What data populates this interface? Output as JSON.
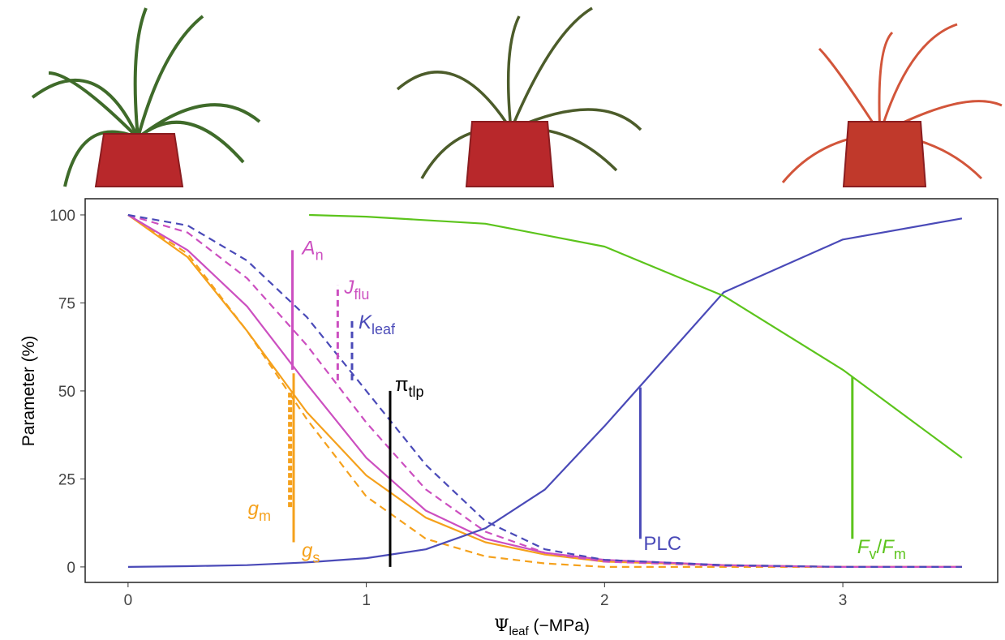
{
  "chart_data": {
    "type": "line",
    "x_label": {
      "symbol": "Ψ",
      "sub": "leaf",
      "unit": " (−MPa)"
    },
    "y_label": "Parameter (%)",
    "xlim": [
      -0.18,
      3.65
    ],
    "ylim": [
      -4.4,
      104.6
    ],
    "xticks": [
      0,
      1,
      2,
      3
    ],
    "yticks": [
      0,
      25,
      50,
      75,
      100
    ],
    "series": [
      {
        "name": "gs",
        "color": "#f5a11c",
        "dash": false,
        "x": [
          0,
          0.25,
          0.5,
          0.75,
          1,
          1.25,
          1.5,
          1.75,
          2,
          2.5,
          3,
          3.5
        ],
        "values": [
          100,
          88,
          67,
          44,
          26,
          14,
          7,
          3.5,
          1.5,
          0.5,
          0,
          0
        ]
      },
      {
        "name": "gm",
        "color": "#f5a11c",
        "dash": true,
        "x": [
          0,
          0.25,
          0.5,
          0.75,
          1,
          1.25,
          1.5,
          1.75,
          2,
          2.5,
          3,
          3.5
        ],
        "values": [
          100,
          89,
          67,
          42,
          20,
          8,
          3,
          1,
          0,
          0,
          0,
          0
        ]
      },
      {
        "name": "An",
        "color": "#cc4fc0",
        "dash": false,
        "x": [
          0,
          0.25,
          0.5,
          0.75,
          1,
          1.25,
          1.5,
          1.75,
          2,
          2.5,
          3,
          3.5
        ],
        "values": [
          100,
          90,
          74,
          52,
          31,
          16,
          8,
          4,
          2,
          0.5,
          0,
          0
        ]
      },
      {
        "name": "Jflu",
        "color": "#cc4fc0",
        "dash": true,
        "x": [
          0,
          0.25,
          0.5,
          0.75,
          1,
          1.25,
          1.5,
          1.75,
          2,
          2.5,
          3,
          3.5
        ],
        "values": [
          100,
          95,
          82,
          63,
          41,
          22,
          10,
          4,
          1.5,
          0.3,
          0,
          0
        ]
      },
      {
        "name": "Kleaf",
        "color": "#4a4ab8",
        "dash": true,
        "x": [
          0,
          0.25,
          0.5,
          0.75,
          1,
          1.25,
          1.5,
          1.75,
          2,
          2.5,
          3,
          3.5
        ],
        "values": [
          100,
          97,
          87,
          71,
          50,
          29,
          13,
          5,
          2,
          0.5,
          0,
          0
        ]
      },
      {
        "name": "PLC",
        "color": "#4a4ab8",
        "dash": false,
        "x": [
          0,
          0.25,
          0.5,
          0.75,
          1,
          1.25,
          1.5,
          1.75,
          2,
          2.5,
          3,
          3.5
        ],
        "values": [
          0,
          0.2,
          0.5,
          1.3,
          2.5,
          5,
          11,
          22,
          40,
          78,
          93,
          99
        ]
      },
      {
        "name": "FvFm",
        "color": "#5cc41c",
        "dash": false,
        "x": [
          0.76,
          1,
          1.5,
          2,
          2.5,
          3,
          3.5
        ],
        "values": [
          100,
          99.5,
          97.5,
          91,
          77,
          56,
          31
        ]
      }
    ],
    "markers": [
      {
        "x": 0.69,
        "y": [
          56,
          90
        ],
        "color": "#cc4fc0",
        "dash": false,
        "label": [
          {
            "text": "A",
            "sub": false,
            "italic": true
          },
          {
            "text": "n",
            "sub": true,
            "italic": false
          }
        ]
      },
      {
        "x": 0.88,
        "y": [
          53,
          80
        ],
        "color": "#cc4fc0",
        "dash": true,
        "label": [
          {
            "text": "J",
            "sub": false,
            "italic": true
          },
          {
            "text": "flu",
            "sub": true,
            "italic": false
          }
        ]
      },
      {
        "x": 0.94,
        "y": [
          53,
          70
        ],
        "color": "#4a4ab8",
        "dash": true,
        "label": [
          {
            "text": "K",
            "sub": false,
            "italic": true
          },
          {
            "text": "leaf",
            "sub": true,
            "italic": false
          }
        ]
      },
      {
        "x": 1.1,
        "y": [
          0,
          50
        ],
        "color": "#000000",
        "dash": false,
        "label": [
          {
            "text": "π",
            "sub": false,
            "italic": false
          },
          {
            "text": "tlp",
            "sub": true,
            "italic": false
          }
        ]
      },
      {
        "x": 0.68,
        "y": [
          17,
          50
        ],
        "color": "#f5a11c",
        "dash": true,
        "label": [
          {
            "text": "g",
            "sub": false,
            "italic": true
          },
          {
            "text": "m",
            "sub": true,
            "italic": false
          }
        ]
      },
      {
        "x": 0.695,
        "y": [
          7,
          55
        ],
        "color": "#f5a11c",
        "dash": false,
        "label": [
          {
            "text": "g",
            "sub": false,
            "italic": true
          },
          {
            "text": "s",
            "sub": true,
            "italic": false
          }
        ]
      },
      {
        "x": 2.15,
        "y": [
          8,
          51
        ],
        "color": "#4a4ab8",
        "dash": false,
        "label": [
          {
            "text": "PLC",
            "sub": false,
            "italic": false
          }
        ]
      },
      {
        "x": 3.04,
        "y": [
          8,
          54
        ],
        "color": "#5cc41c",
        "dash": false,
        "label": [
          {
            "text": "F",
            "sub": false,
            "italic": true
          },
          {
            "text": "v",
            "sub": true,
            "italic": false
          },
          {
            "text": "/",
            "sub": false,
            "italic": false
          },
          {
            "text": "F",
            "sub": false,
            "italic": true
          },
          {
            "text": "m",
            "sub": true,
            "italic": false
          }
        ]
      }
    ]
  }
}
